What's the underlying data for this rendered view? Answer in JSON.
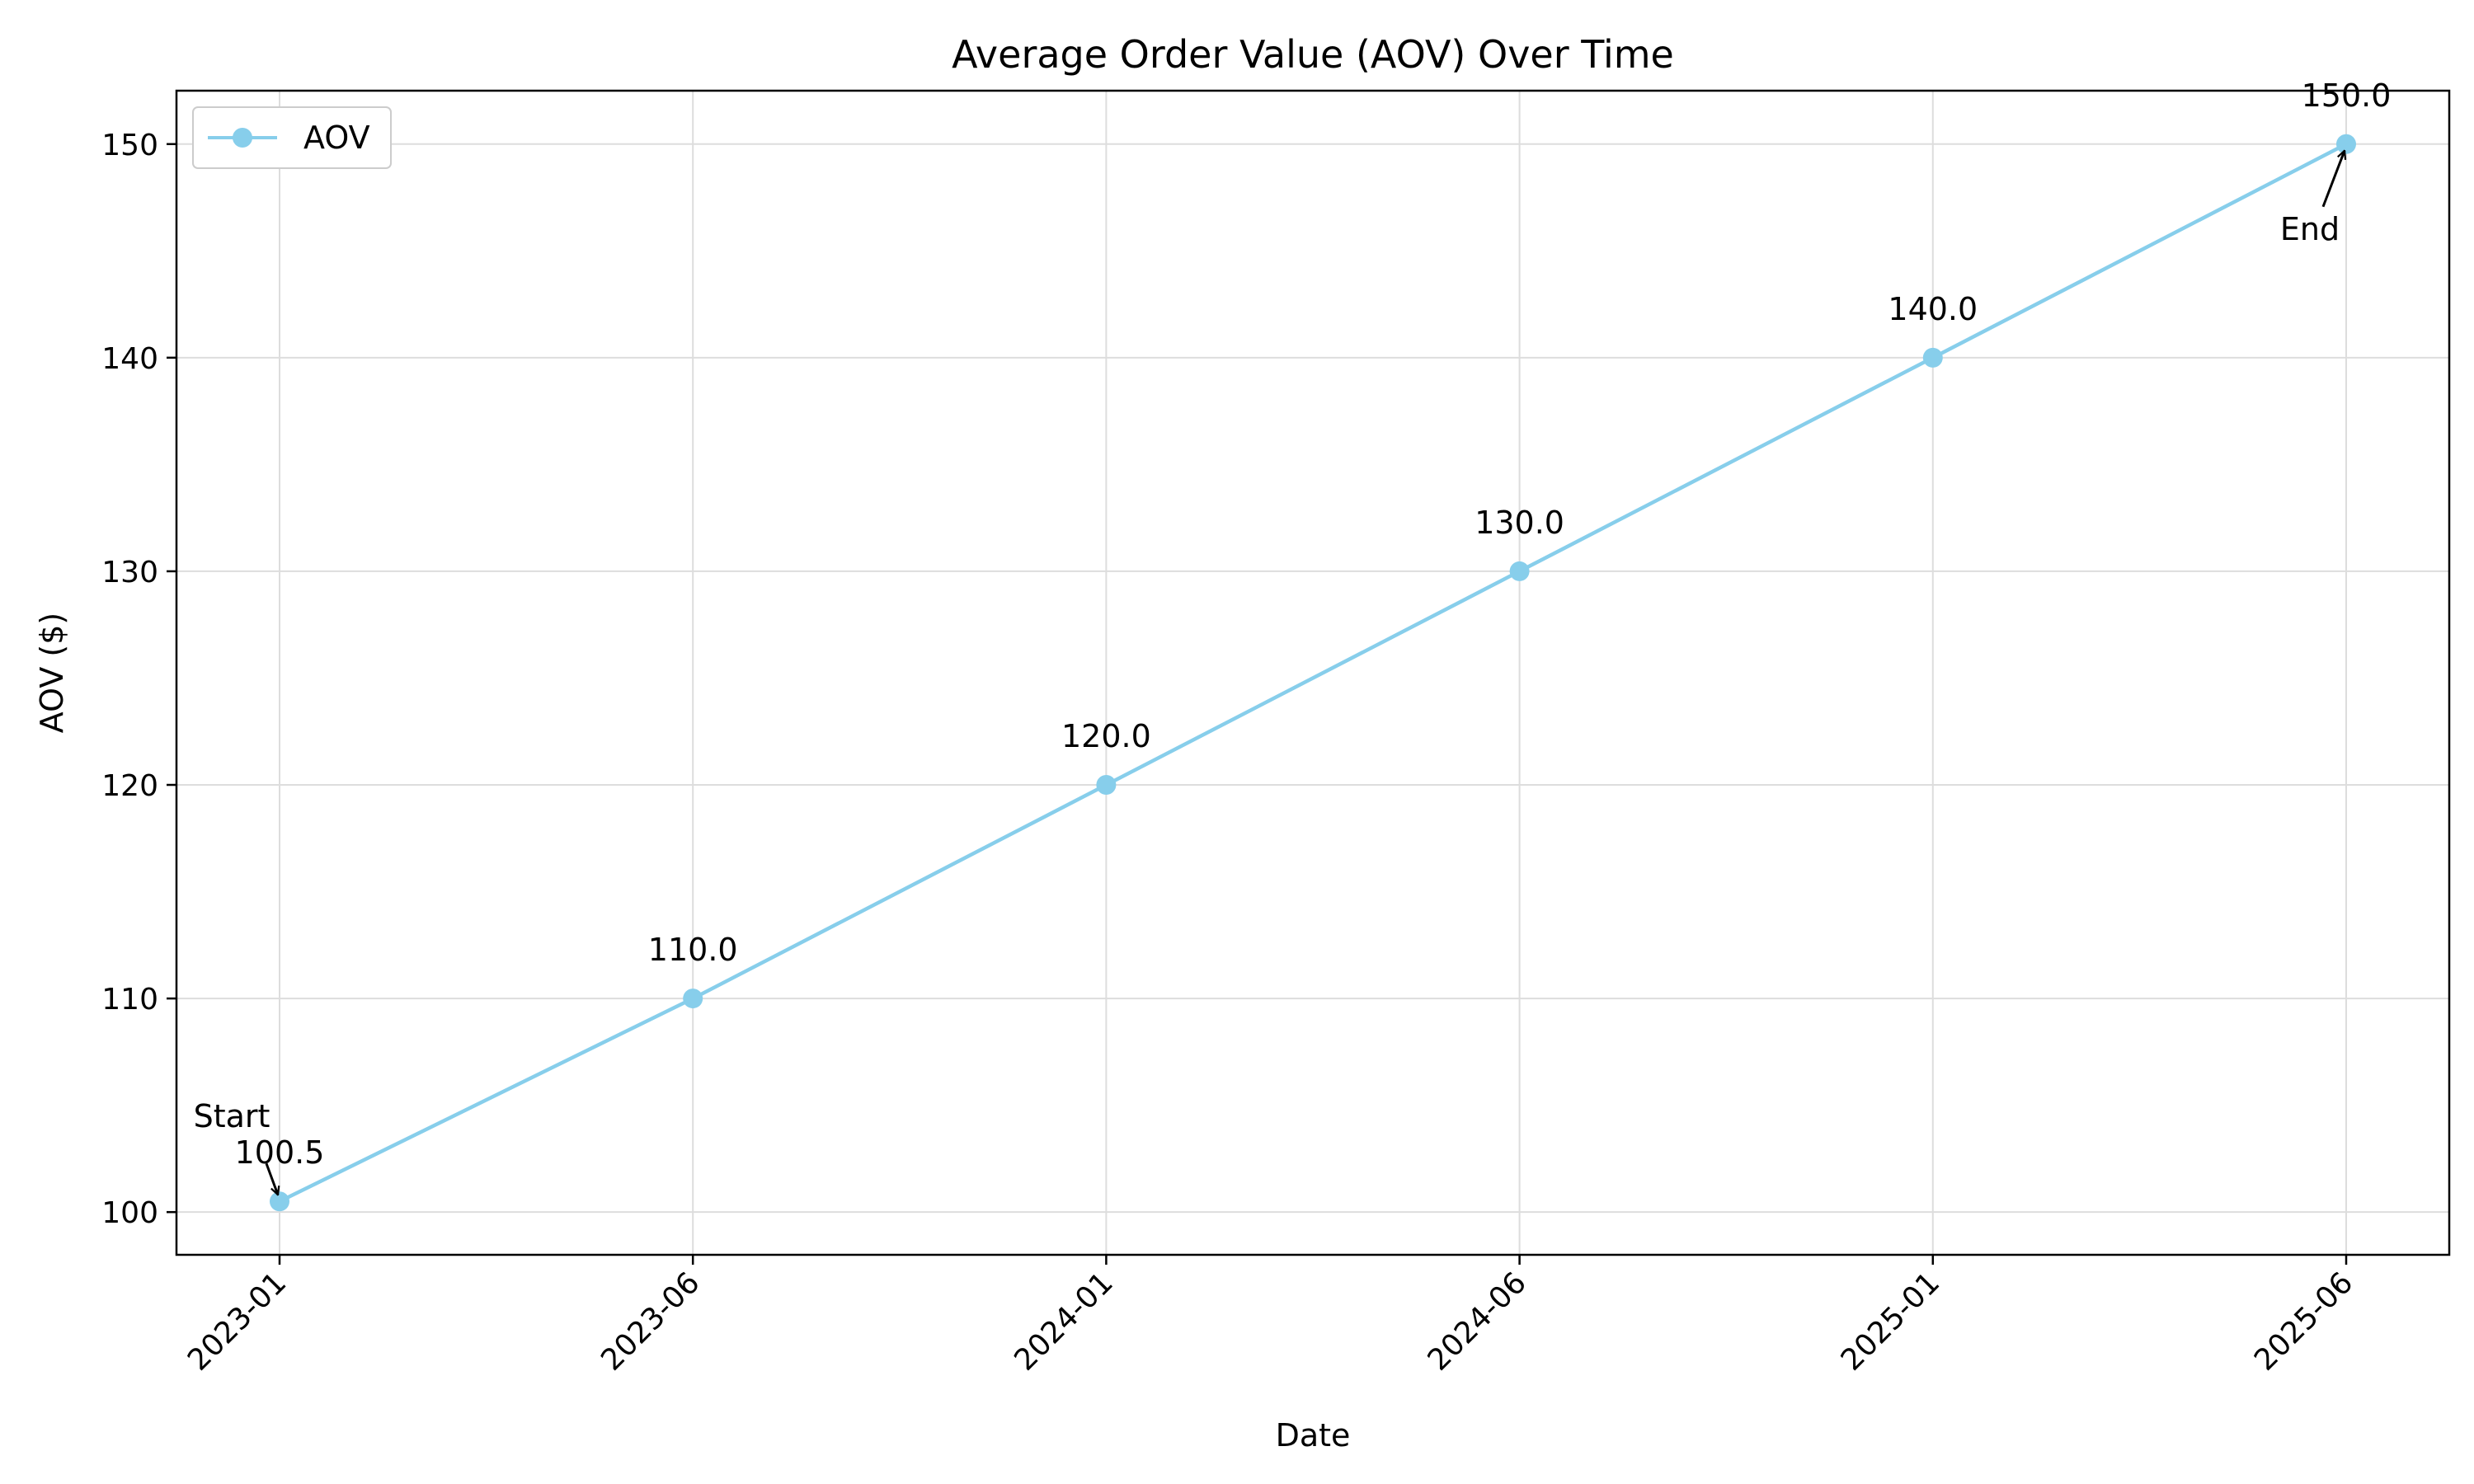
{
  "colors": {
    "series": "#87ceeb",
    "grid": "#dddddd",
    "axis": "#000000"
  },
  "chart_data": {
    "type": "line",
    "title": "Average Order Value (AOV) Over Time",
    "xlabel": "Date",
    "ylabel": "AOV ($)",
    "x": [
      "2023-01",
      "2023-06",
      "2024-01",
      "2024-06",
      "2025-01",
      "2025-06"
    ],
    "series": [
      {
        "name": "AOV",
        "values": [
          100.5,
          110.0,
          120.0,
          130.0,
          140.0,
          150.0
        ],
        "data_labels": [
          "100.5",
          "110.0",
          "120.0",
          "130.0",
          "140.0",
          "150.0"
        ]
      }
    ],
    "ylim": [
      98,
      152.5
    ],
    "yticks": [
      100,
      110,
      120,
      130,
      140,
      150
    ],
    "grid": true,
    "legend_position": "top-left",
    "annotations": [
      {
        "text": "Start",
        "point_index": 0
      },
      {
        "text": "End",
        "point_index": 5
      }
    ]
  }
}
